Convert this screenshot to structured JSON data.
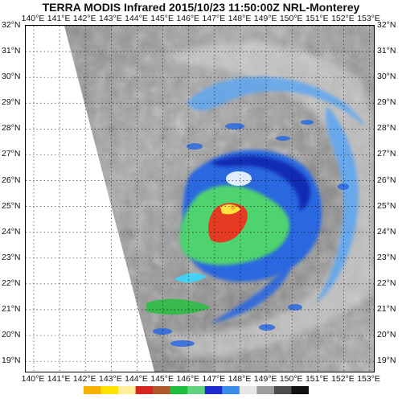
{
  "header": {
    "title": "TERRA MODIS Infrared 2015/10/23 11:50:00Z NRL-Monterey"
  },
  "axes": {
    "longitude_labels": [
      "140°E",
      "141°E",
      "142°E",
      "143°E",
      "144°E",
      "145°E",
      "146°E",
      "147°E",
      "148°E",
      "149°E",
      "150°E",
      "151°E",
      "152°E",
      "153°E"
    ],
    "latitude_labels": [
      "32°N",
      "31°N",
      "30°N",
      "29°N",
      "28°N",
      "27°N",
      "26°N",
      "25°N",
      "24°N",
      "23°N",
      "22°N",
      "21°N",
      "20°N",
      "19°N"
    ]
  },
  "map": {
    "extent": {
      "lon_min": 140,
      "lon_max": 153,
      "lat_min": 18.6,
      "lat_max": 32
    },
    "grid": "dotted",
    "colors": {
      "swath_edge_bg": "#ffffff",
      "gray_low": "#6f6f6f",
      "gray_mid": "#9a9a9a",
      "gray_high": "#cfcfcf",
      "blue_light": "#5ea6f0",
      "blue_mid": "#2a68e0",
      "blue_dark": "#0d1ea8",
      "cyan": "#39d6ff",
      "green": "#4fd36e",
      "green_bright": "#2dbd45",
      "red": "#e53b23",
      "orange": "#f0b231",
      "yellow": "#ffe33f",
      "brown": "#c06330"
    }
  },
  "colorbar": {
    "stops": [
      "#f6b000",
      "#ffe300",
      "#ffef9a",
      "#d82323",
      "#b05a2c",
      "#1fbe3d",
      "#5cd37c",
      "#1e2ccf",
      "#3a8ce8",
      "#e6e6e6",
      "#9d9d9d",
      "#4b4b4b",
      "#111111"
    ]
  }
}
